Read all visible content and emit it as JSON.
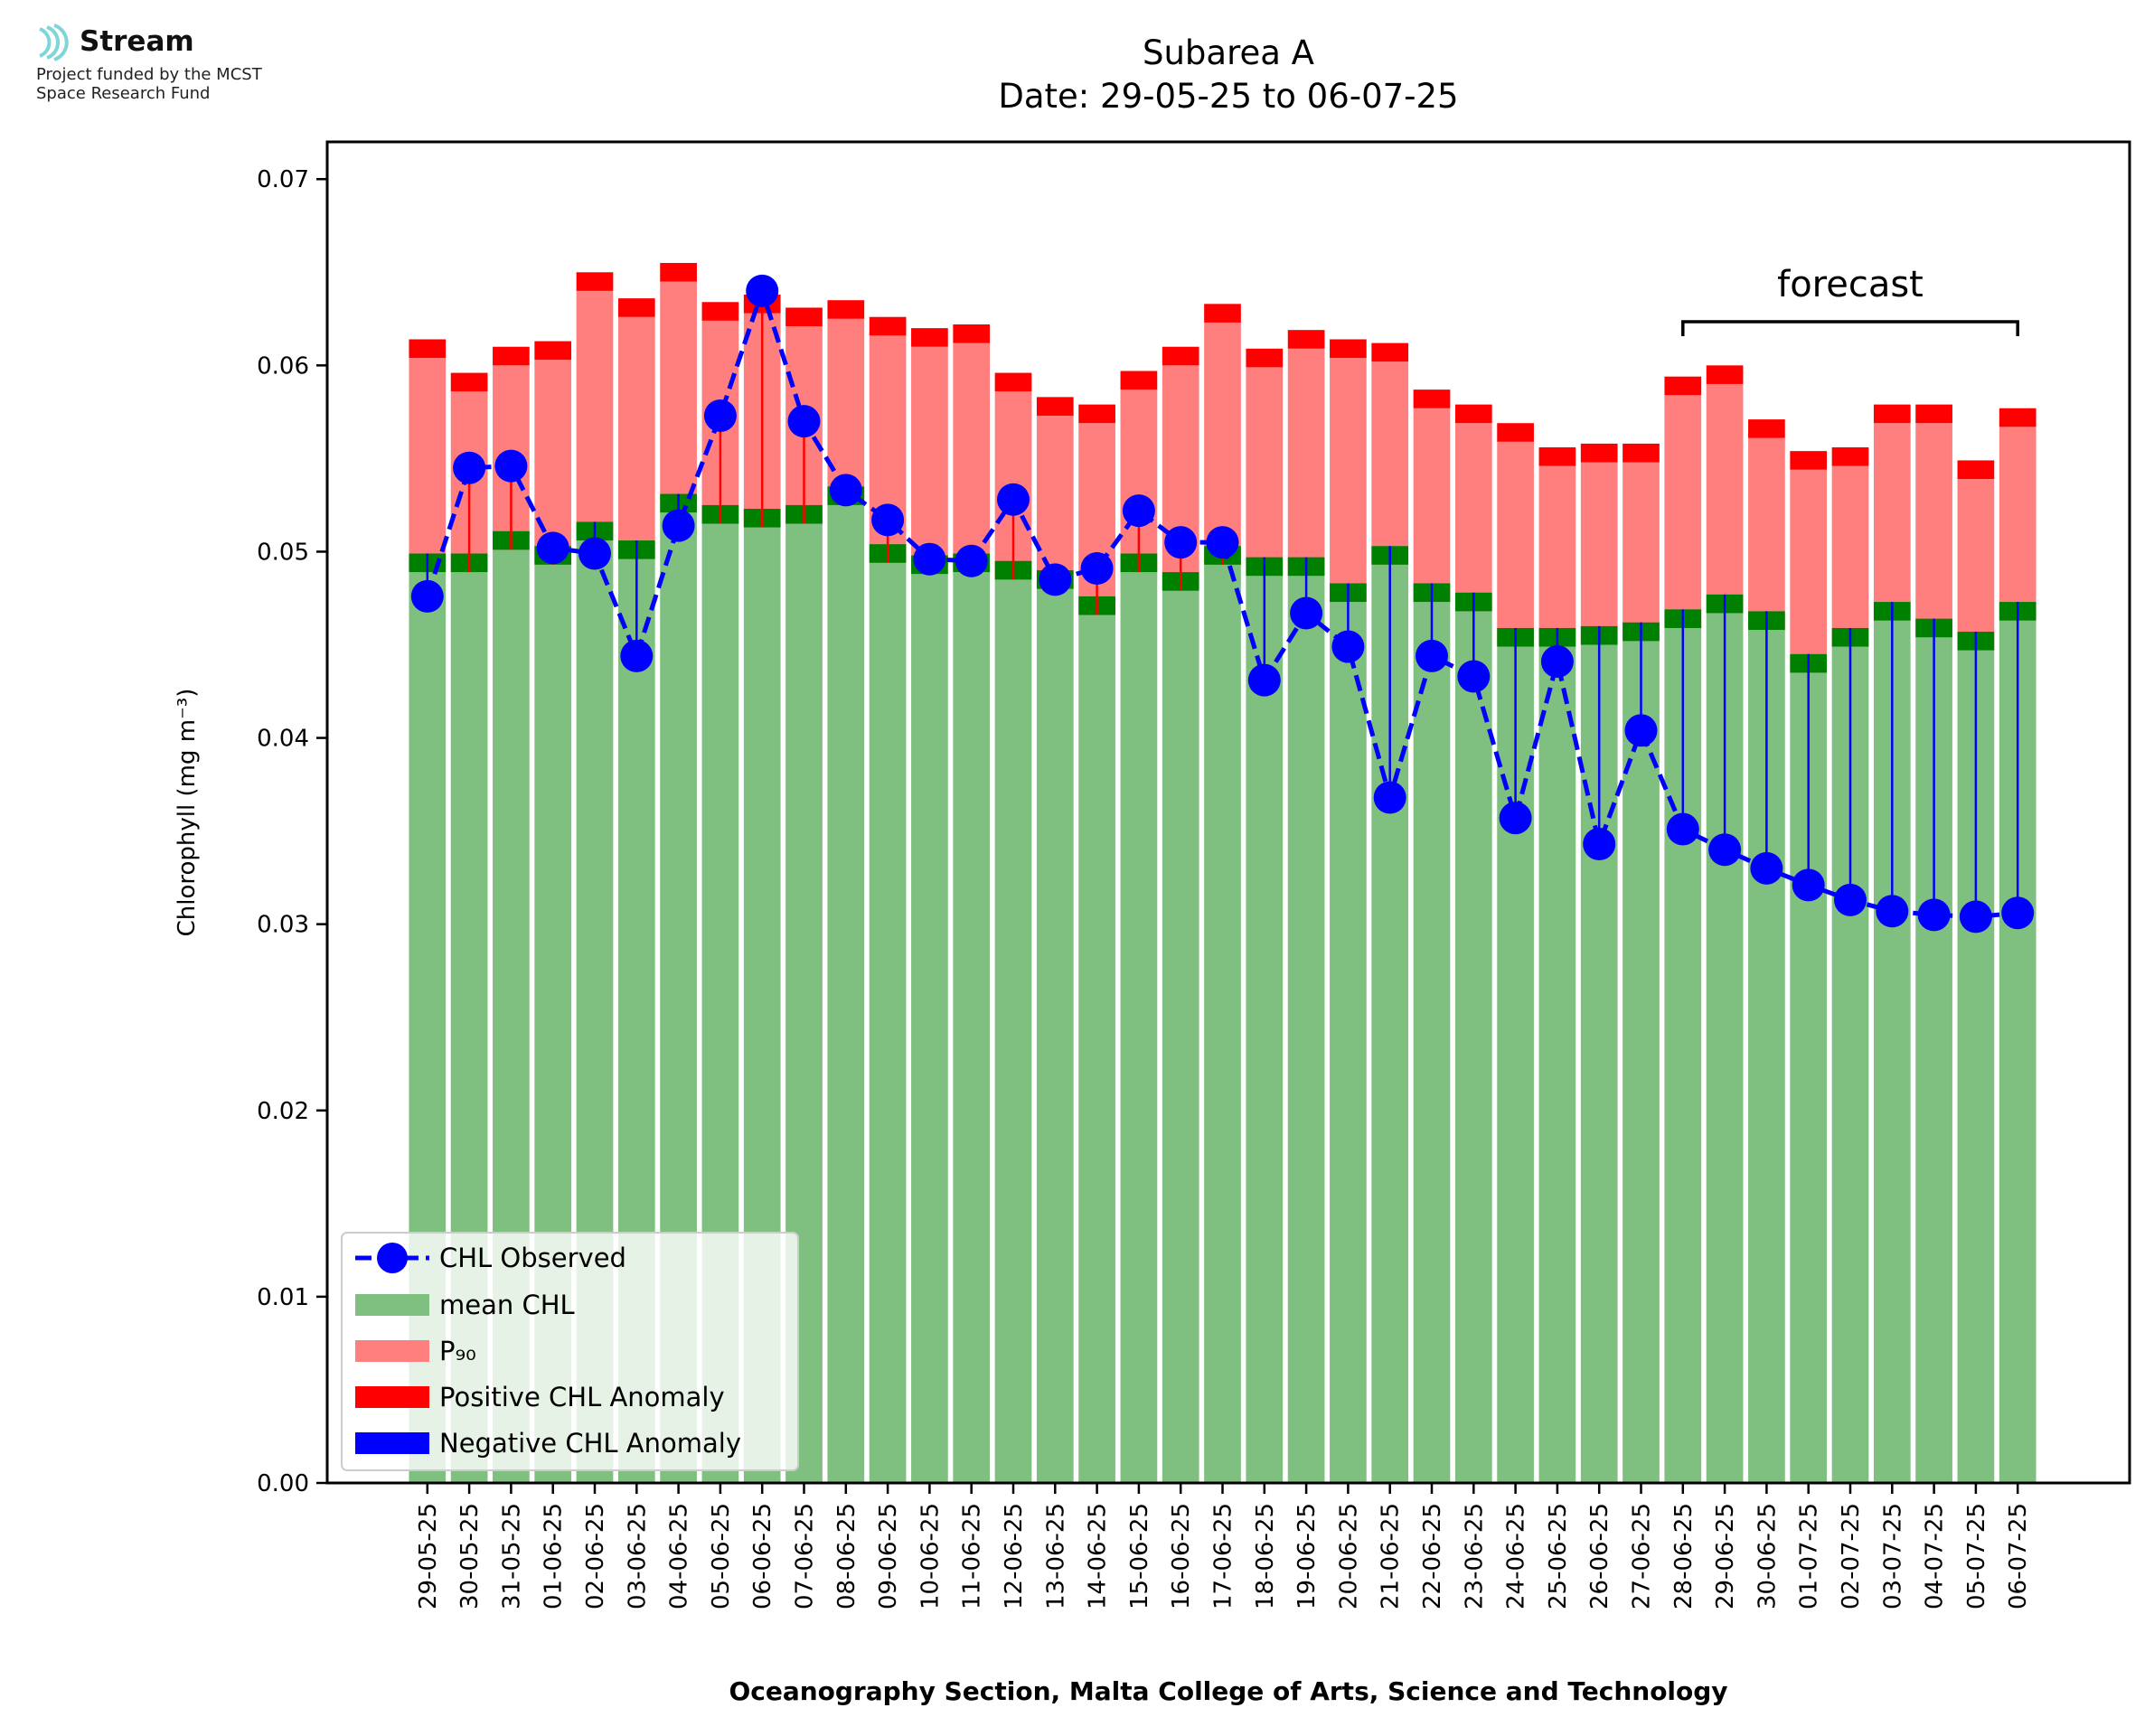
{
  "logo": {
    "name": "Stream",
    "funding_line1": "Project funded by the MCST",
    "funding_line2": "Space Research Fund",
    "accent_color": "#7fd6d8"
  },
  "chart_data": {
    "type": "bar",
    "title": "Subarea A",
    "subtitle": "Date: 29-05-25 to 06-07-25",
    "ylabel": "Chlorophyll (mg m⁻³)",
    "xlabel": "Oceanography Section, Malta College of Arts, Science and Technology",
    "ylim": [
      0,
      0.072
    ],
    "yticks": [
      "0.00",
      "0.01",
      "0.02",
      "0.03",
      "0.04",
      "0.05",
      "0.06",
      "0.07"
    ],
    "categories": [
      "29-05-25",
      "30-05-25",
      "31-05-25",
      "01-06-25",
      "02-06-25",
      "03-06-25",
      "04-06-25",
      "05-06-25",
      "06-06-25",
      "07-06-25",
      "08-06-25",
      "09-06-25",
      "10-06-25",
      "11-06-25",
      "12-06-25",
      "13-06-25",
      "14-06-25",
      "15-06-25",
      "16-06-25",
      "17-06-25",
      "18-06-25",
      "19-06-25",
      "20-06-25",
      "21-06-25",
      "22-06-25",
      "23-06-25",
      "24-06-25",
      "25-06-25",
      "26-06-25",
      "27-06-25",
      "28-06-25",
      "29-06-25",
      "30-06-25",
      "01-07-25",
      "02-07-25",
      "03-07-25",
      "04-07-25",
      "05-07-25",
      "06-07-25"
    ],
    "series": [
      {
        "name": "CHL Observed",
        "color": "#0000ff",
        "values": [
          0.0476,
          0.0545,
          0.0546,
          0.0502,
          0.0499,
          0.0444,
          0.0514,
          0.0573,
          0.064,
          0.057,
          0.0533,
          0.0517,
          0.0496,
          0.0495,
          0.0528,
          0.0485,
          0.0491,
          0.0522,
          0.0505,
          0.0505,
          0.0431,
          0.0467,
          0.0449,
          0.0368,
          0.0444,
          0.0433,
          0.0357,
          0.0441,
          0.0343,
          0.0404,
          0.0351,
          0.034,
          0.033,
          0.0321,
          0.0313,
          0.0307,
          0.0305,
          0.0304,
          0.0306
        ]
      },
      {
        "name": "mean CHL",
        "color": "#7fbf7f",
        "values": [
          0.0489,
          0.0489,
          0.0501,
          0.0493,
          0.0506,
          0.0496,
          0.0521,
          0.0515,
          0.0513,
          0.0515,
          0.0525,
          0.0494,
          0.0488,
          0.0489,
          0.0485,
          0.048,
          0.0466,
          0.0489,
          0.0479,
          0.0493,
          0.0487,
          0.0487,
          0.0473,
          0.0493,
          0.0473,
          0.0468,
          0.0449,
          0.0449,
          0.045,
          0.0452,
          0.0459,
          0.0467,
          0.0458,
          0.0435,
          0.0449,
          0.0463,
          0.0454,
          0.0447,
          0.0463
        ]
      },
      {
        "name": "P₉₀",
        "color": "#ff7f7f",
        "values": [
          0.0604,
          0.0586,
          0.06,
          0.0603,
          0.064,
          0.0626,
          0.0645,
          0.0624,
          0.0628,
          0.0621,
          0.0625,
          0.0616,
          0.061,
          0.0612,
          0.0586,
          0.0573,
          0.0569,
          0.0587,
          0.06,
          0.0623,
          0.0599,
          0.0609,
          0.0604,
          0.0602,
          0.0577,
          0.0569,
          0.0559,
          0.0546,
          0.0548,
          0.0548,
          0.0584,
          0.059,
          0.0561,
          0.0544,
          0.0546,
          0.0569,
          0.0569,
          0.0539,
          0.0567
        ]
      },
      {
        "name": "Positive CHL Anomaly",
        "color": "#ff0000"
      },
      {
        "name": "Negative CHL Anomaly",
        "color": "#0000ff"
      }
    ],
    "mean_band_color": "#008000",
    "band_width": 0.001,
    "forecast": {
      "label": "forecast",
      "start": "28-06-25",
      "end": "06-07-25"
    },
    "legend_position": "lower-left",
    "grid": false
  }
}
